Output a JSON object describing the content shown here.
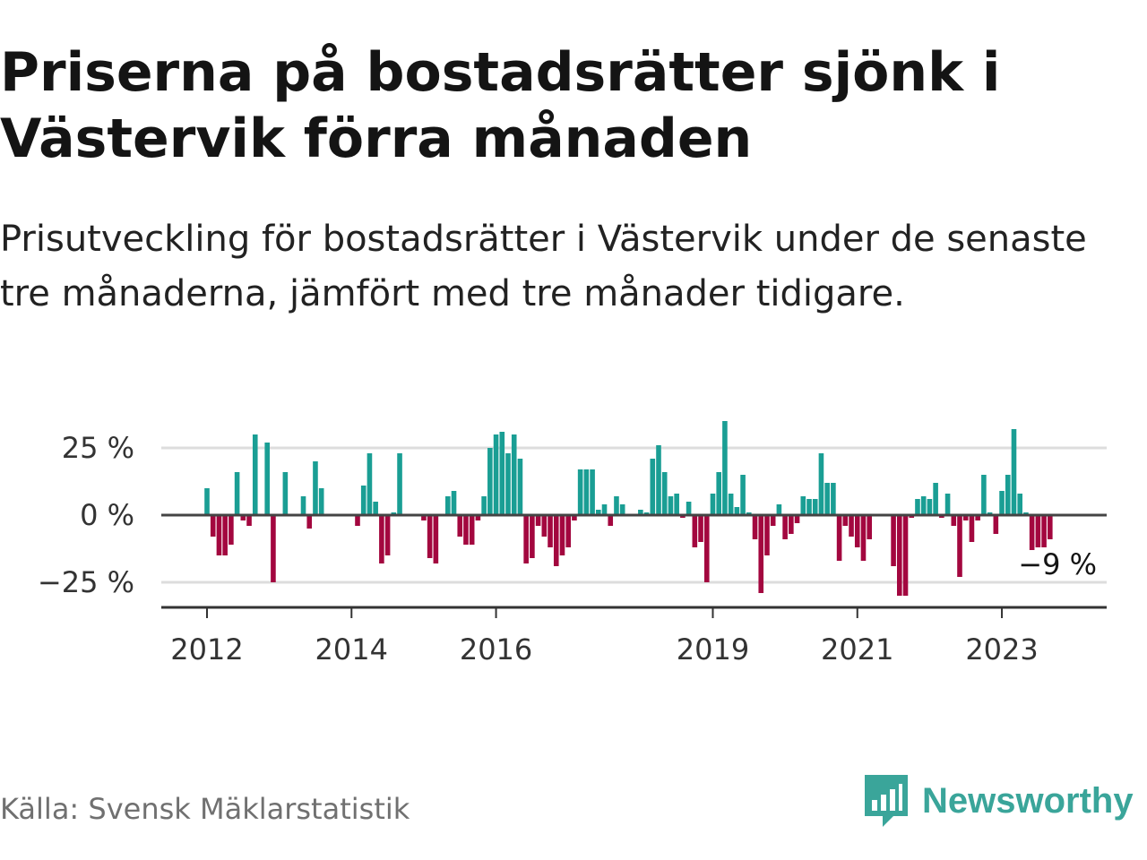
{
  "title": "Priserna på bostadsrätter sjönk i Västervik förra månaden",
  "subtitle": "Prisutveckling för bostadsrätter i Västervik under de senaste tre månaderna, jämfört med tre månader tidigare.",
  "source": "Källa: Svensk Mäklarstatistik",
  "brand": {
    "name": "Newsworthy",
    "icon": "newsworthy-logo-icon",
    "color": "#3aa59a"
  },
  "colors": {
    "positive": "#1a9e94",
    "negative": "#a3073f",
    "gridline": "#dddddd",
    "zeroline": "#444444"
  },
  "chart_data": {
    "type": "bar",
    "title": "Priserna på bostadsrätter sjönk i Västervik förra månaden",
    "xlabel": "",
    "ylabel": "",
    "ylim": [
      -35,
      35
    ],
    "y_ticks": [
      {
        "value": 25,
        "label": "25 %"
      },
      {
        "value": 0,
        "label": "0 %"
      },
      {
        "value": -25,
        "label": "−25 %"
      }
    ],
    "x_ticks": [
      {
        "month_index": 0,
        "label": "2012"
      },
      {
        "month_index": 24,
        "label": "2014"
      },
      {
        "month_index": 48,
        "label": "2016"
      },
      {
        "month_index": 84,
        "label": "2019"
      },
      {
        "month_index": 108,
        "label": "2021"
      },
      {
        "month_index": 132,
        "label": "2023"
      }
    ],
    "start": "2012-01",
    "end": "2024-01",
    "series": [
      {
        "name": "Prisutveckling, %",
        "values": [
          10,
          -8,
          -15,
          -15,
          -11,
          16,
          -2,
          -4,
          30,
          null,
          27,
          -25,
          null,
          16,
          null,
          null,
          7,
          -5,
          20,
          10,
          null,
          null,
          null,
          null,
          null,
          -4,
          11,
          23,
          5,
          -18,
          -15,
          1,
          23,
          null,
          null,
          null,
          -2,
          -16,
          -18,
          null,
          7,
          9,
          -8,
          -11,
          -11,
          -2,
          7,
          25,
          30,
          31,
          23,
          30,
          21,
          -18,
          -16,
          -4,
          -8,
          -12,
          -19,
          -15,
          -12,
          -2,
          17,
          17,
          17,
          2,
          4,
          -4,
          7,
          4,
          null,
          null,
          2,
          1,
          21,
          26,
          16,
          7,
          8,
          -1,
          5,
          -12,
          -10,
          -25,
          8,
          16,
          35,
          8,
          3,
          15,
          1,
          -9,
          -29,
          -15,
          -4,
          4,
          -9,
          -7,
          -3,
          7,
          6,
          6,
          23,
          12,
          12,
          -17,
          -4,
          -8,
          -12,
          -17,
          -9,
          null,
          null,
          null,
          -19,
          -30,
          -30,
          -1,
          6,
          7,
          6,
          12,
          -1,
          8,
          -4,
          -23,
          -2,
          -10,
          -2,
          15,
          1,
          -7,
          9,
          15,
          32,
          8,
          1,
          -13,
          -12,
          -12,
          -9
        ]
      }
    ],
    "last_value_label": "−9 %"
  }
}
